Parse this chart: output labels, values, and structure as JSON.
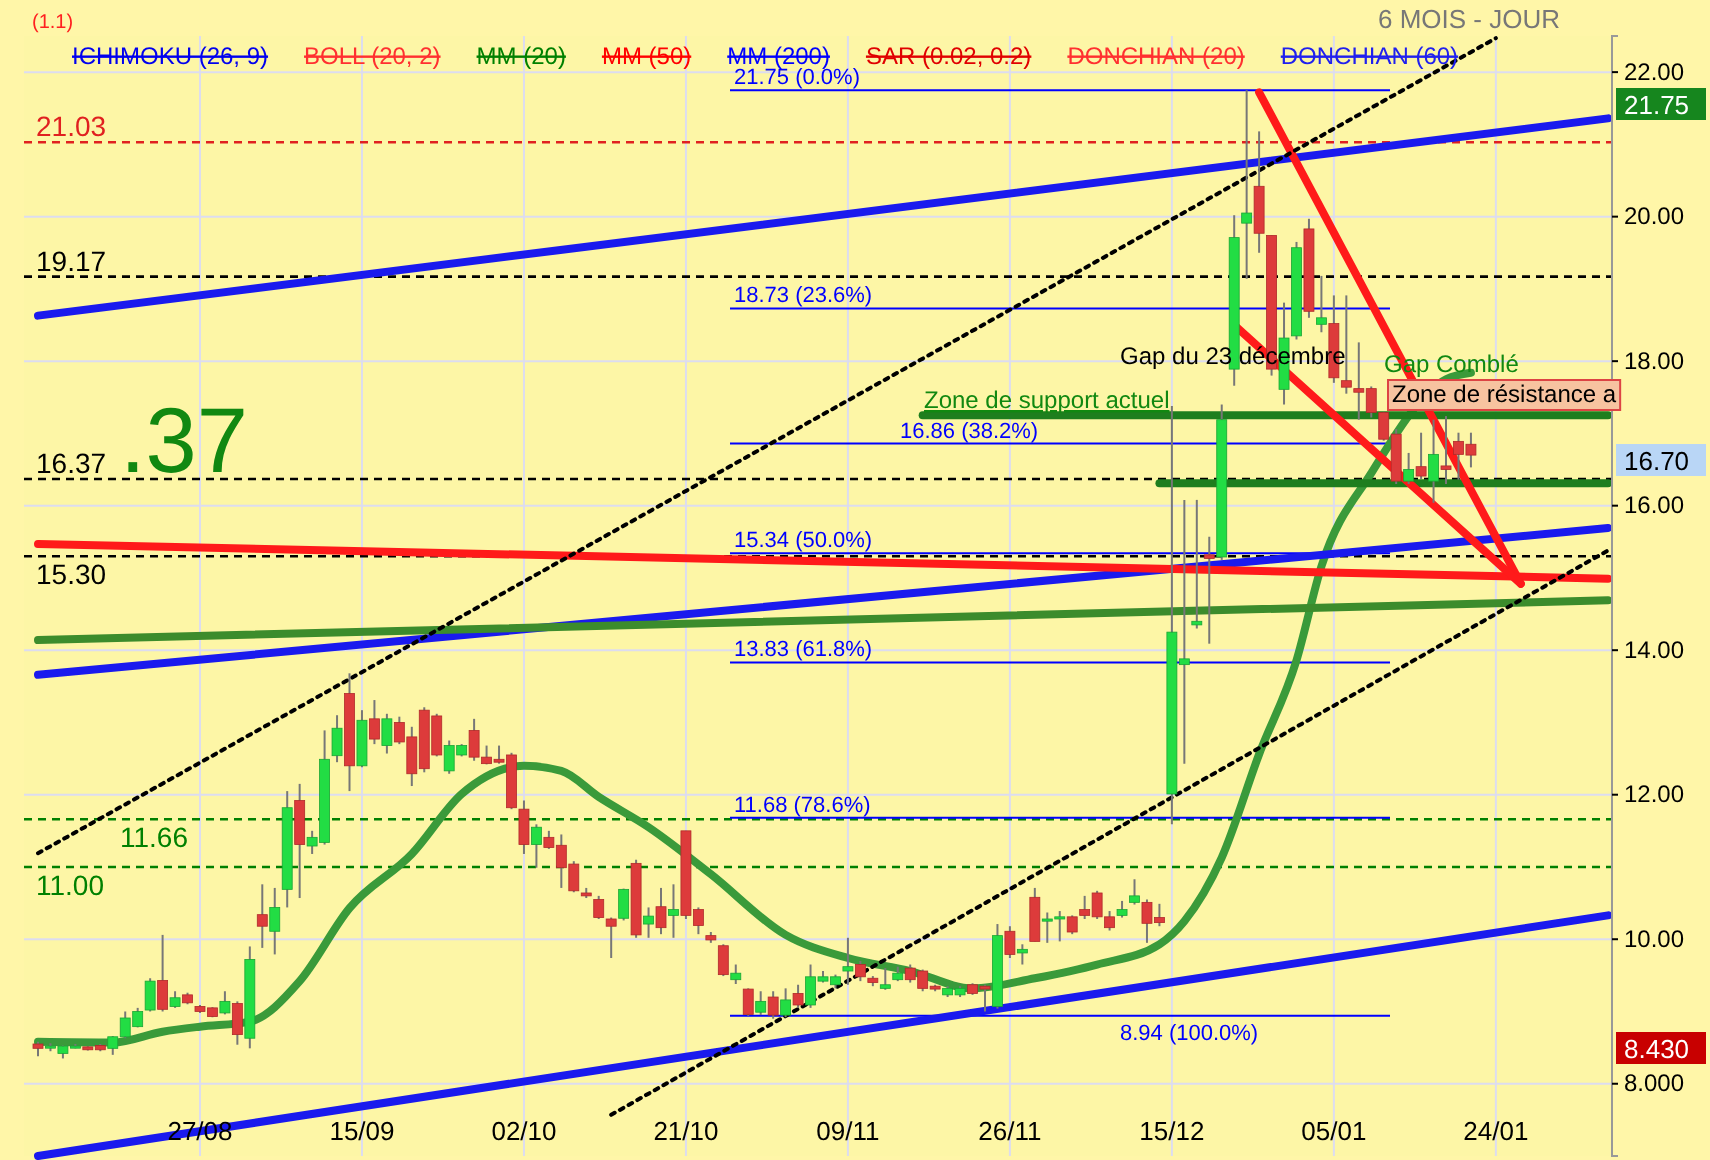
{
  "chart_data": {
    "type": "candlestick",
    "subtitle": "6 MOIS - JOUR",
    "categories": [
      null,
      null,
      null,
      null,
      null,
      null,
      null,
      null,
      null,
      null,
      null,
      null,
      null,
      "27/08",
      null,
      null,
      null,
      null,
      null,
      null,
      null,
      null,
      null,
      null,
      null,
      null,
      "15/09",
      null,
      null,
      null,
      null,
      null,
      null,
      null,
      null,
      null,
      null,
      null,
      null,
      "02/10",
      null,
      null,
      null,
      null,
      null,
      null,
      null,
      null,
      null,
      null,
      null,
      null,
      "21/10",
      null,
      null,
      null,
      null,
      null,
      null,
      null,
      null,
      null,
      null,
      null,
      null,
      "09/11",
      null,
      null,
      null,
      null,
      null,
      null,
      null,
      null,
      null,
      null,
      null,
      null,
      "26/11",
      null,
      null,
      null,
      null,
      null,
      null,
      null,
      null,
      null,
      null,
      null,
      null,
      "15/12",
      null,
      null,
      null,
      null,
      null,
      null,
      null,
      null,
      null,
      null,
      null,
      null,
      "05/01",
      null,
      null,
      null,
      null,
      null,
      null,
      null,
      null,
      null,
      null,
      null,
      null,
      "24/01",
      null,
      null,
      null,
      null,
      null,
      null,
      null,
      null,
      null
    ],
    "ohlc": [
      [
        8.55,
        8.58,
        8.38,
        8.49
      ],
      [
        8.5,
        8.56,
        8.45,
        8.52
      ],
      [
        8.42,
        8.53,
        8.35,
        8.52
      ],
      [
        8.52,
        8.55,
        8.49,
        8.52
      ],
      [
        8.51,
        8.52,
        8.46,
        8.47
      ],
      [
        8.53,
        8.55,
        8.45,
        8.47
      ],
      [
        8.49,
        8.66,
        8.4,
        8.65
      ],
      [
        8.65,
        9.0,
        8.63,
        8.91
      ],
      [
        8.79,
        9.05,
        8.78,
        9.0
      ],
      [
        9.02,
        9.46,
        9.0,
        9.42
      ],
      [
        9.43,
        10.06,
        9.0,
        9.03
      ],
      [
        9.07,
        9.28,
        9.05,
        9.19
      ],
      [
        9.23,
        9.26,
        9.1,
        9.12
      ],
      [
        9.07,
        9.09,
        8.98,
        9.0
      ],
      [
        9.05,
        9.06,
        8.92,
        8.93
      ],
      [
        8.98,
        9.28,
        8.96,
        9.14
      ],
      [
        9.11,
        9.14,
        8.54,
        8.68
      ],
      [
        8.63,
        9.9,
        8.49,
        9.72
      ],
      [
        10.34,
        10.76,
        9.88,
        10.18
      ],
      [
        10.11,
        10.71,
        9.79,
        10.44
      ],
      [
        10.69,
        12.05,
        10.44,
        11.82
      ],
      [
        11.92,
        12.15,
        10.57,
        11.31
      ],
      [
        11.29,
        11.5,
        11.18,
        11.41
      ],
      [
        11.34,
        12.89,
        11.31,
        12.49
      ],
      [
        12.54,
        13.1,
        12.45,
        12.92
      ],
      [
        13.4,
        13.68,
        12.05,
        12.4
      ],
      [
        12.4,
        13.17,
        12.38,
        13.03
      ],
      [
        13.05,
        13.31,
        12.7,
        12.77
      ],
      [
        12.68,
        13.12,
        12.57,
        13.05
      ],
      [
        13.0,
        13.08,
        12.7,
        12.73
      ],
      [
        12.8,
        12.94,
        12.12,
        12.29
      ],
      [
        13.17,
        13.21,
        12.31,
        12.36
      ],
      [
        13.09,
        13.12,
        12.53,
        12.55
      ],
      [
        12.33,
        12.75,
        12.29,
        12.68
      ],
      [
        12.55,
        12.7,
        12.53,
        12.68
      ],
      [
        12.89,
        13.05,
        12.47,
        12.52
      ],
      [
        12.52,
        12.68,
        12.42,
        12.43
      ],
      [
        12.49,
        12.68,
        12.43,
        12.45
      ],
      [
        12.55,
        12.58,
        11.8,
        11.82
      ],
      [
        11.8,
        11.92,
        11.18,
        11.31
      ],
      [
        11.31,
        11.59,
        10.99,
        11.55
      ],
      [
        11.41,
        11.5,
        11.25,
        11.27
      ],
      [
        11.3,
        11.45,
        10.71,
        10.99
      ],
      [
        11.04,
        11.08,
        10.65,
        10.67
      ],
      [
        10.64,
        10.71,
        10.57,
        10.6
      ],
      [
        10.55,
        10.6,
        10.28,
        10.3
      ],
      [
        10.28,
        10.3,
        9.74,
        10.18
      ],
      [
        10.29,
        10.7,
        10.26,
        10.69
      ],
      [
        11.05,
        11.1,
        10.02,
        10.06
      ],
      [
        10.21,
        10.44,
        10.02,
        10.32
      ],
      [
        10.45,
        10.71,
        10.07,
        10.16
      ],
      [
        10.33,
        10.76,
        10.02,
        10.41
      ],
      [
        11.5,
        11.5,
        10.28,
        10.33
      ],
      [
        10.41,
        10.44,
        10.07,
        10.19
      ],
      [
        10.05,
        10.1,
        9.95,
        9.99
      ],
      [
        9.91,
        9.93,
        9.49,
        9.51
      ],
      [
        9.44,
        9.65,
        9.38,
        9.53
      ],
      [
        9.31,
        9.32,
        8.94,
        8.96
      ],
      [
        8.99,
        9.28,
        8.95,
        9.14
      ],
      [
        9.2,
        9.28,
        8.9,
        8.95
      ],
      [
        8.95,
        9.32,
        8.92,
        9.16
      ],
      [
        9.25,
        9.37,
        9.05,
        9.09
      ],
      [
        9.09,
        9.65,
        9.05,
        9.48
      ],
      [
        9.42,
        9.56,
        9.4,
        9.48
      ],
      [
        9.37,
        9.51,
        9.32,
        9.48
      ],
      [
        9.56,
        10.02,
        9.37,
        9.62
      ],
      [
        9.65,
        9.7,
        9.42,
        9.48
      ],
      [
        9.46,
        9.49,
        9.35,
        9.4
      ],
      [
        9.32,
        9.6,
        9.3,
        9.37
      ],
      [
        9.44,
        9.62,
        9.42,
        9.53
      ],
      [
        9.6,
        9.65,
        9.4,
        9.44
      ],
      [
        9.56,
        9.58,
        9.28,
        9.32
      ],
      [
        9.35,
        9.37,
        9.28,
        9.31
      ],
      [
        9.23,
        9.35,
        9.2,
        9.32
      ],
      [
        9.23,
        9.35,
        9.2,
        9.32
      ],
      [
        9.37,
        9.39,
        9.23,
        9.25
      ],
      [
        9.35,
        9.37,
        9.0,
        9.31
      ],
      [
        9.07,
        10.21,
        9.04,
        10.05
      ],
      [
        10.11,
        10.18,
        9.74,
        9.79
      ],
      [
        9.81,
        9.93,
        9.65,
        9.86
      ],
      [
        10.58,
        10.71,
        9.97,
        9.97
      ],
      [
        10.25,
        10.37,
        9.95,
        10.28
      ],
      [
        10.28,
        10.39,
        9.97,
        10.31
      ],
      [
        10.31,
        10.33,
        10.07,
        10.1
      ],
      [
        10.41,
        10.6,
        10.28,
        10.33
      ],
      [
        10.64,
        10.67,
        10.28,
        10.31
      ],
      [
        10.31,
        10.39,
        10.12,
        10.16
      ],
      [
        10.33,
        10.53,
        10.3,
        10.41
      ],
      [
        10.51,
        10.83,
        10.48,
        10.6
      ],
      [
        10.51,
        10.55,
        9.95,
        10.22
      ],
      [
        10.3,
        10.49,
        10.18,
        10.23
      ],
      [
        12.01,
        17.38,
        11.59,
        14.25
      ],
      [
        13.8,
        16.08,
        12.43,
        13.88
      ],
      [
        14.35,
        16.08,
        14.3,
        14.4
      ],
      [
        15.32,
        15.57,
        14.09,
        15.27
      ],
      [
        15.29,
        17.4,
        15.25,
        17.19
      ],
      [
        17.89,
        20.02,
        17.66,
        19.71
      ],
      [
        19.91,
        21.75,
        19.14,
        20.05
      ],
      [
        20.42,
        21.18,
        19.5,
        19.77
      ],
      [
        19.74,
        19.74,
        17.8,
        17.89
      ],
      [
        17.61,
        18.81,
        17.4,
        18.32
      ],
      [
        18.35,
        19.65,
        18.3,
        19.57
      ],
      [
        19.83,
        19.97,
        18.6,
        18.69
      ],
      [
        18.51,
        19.18,
        18.4,
        18.6
      ],
      [
        18.52,
        18.91,
        17.7,
        17.77
      ],
      [
        17.73,
        18.91,
        17.55,
        17.64
      ],
      [
        17.62,
        18.26,
        17.19,
        17.57
      ],
      [
        17.62,
        17.65,
        17.22,
        17.29
      ],
      [
        17.29,
        17.3,
        16.9,
        16.92
      ],
      [
        16.99,
        17.06,
        16.3,
        16.34
      ],
      [
        16.34,
        16.73,
        16.3,
        16.5
      ],
      [
        16.54,
        17.01,
        16.37,
        16.41
      ],
      [
        16.34,
        17.19,
        16.04,
        16.71
      ],
      [
        16.55,
        17.24,
        16.3,
        16.5
      ],
      [
        16.89,
        17.01,
        16.36,
        16.71
      ],
      [
        16.85,
        17.01,
        16.53,
        16.7
      ],
      null,
      null,
      null,
      null,
      null,
      null,
      null,
      null,
      null,
      null,
      null
    ],
    "series": [
      {
        "type": "line",
        "color": "#3a9a3a",
        "values": [
          8.58,
          null,
          null,
          null,
          null,
          null,
          8.57,
          null,
          null,
          null,
          8.72,
          null,
          null,
          8.79,
          null,
          null,
          null,
          8.86,
          null,
          null,
          null,
          9.42,
          null,
          null,
          null,
          10.43,
          null,
          null,
          null,
          null,
          11.18,
          null,
          null,
          null,
          12.01,
          null,
          null,
          null,
          null,
          12.4,
          null,
          null,
          12.33,
          null,
          null,
          11.97,
          null,
          null,
          null,
          11.55,
          null,
          null,
          null,
          null,
          10.9,
          null,
          null,
          null,
          null,
          null,
          10.06,
          null,
          null,
          null,
          null,
          9.74,
          null,
          null,
          null,
          null,
          9.56,
          null,
          null,
          null,
          null,
          9.32,
          null,
          null,
          null,
          null,
          9.46,
          null,
          null,
          null,
          null,
          9.65,
          null,
          null,
          null,
          null,
          9.93,
          null,
          10.25,
          null,
          null,
          11.13,
          null,
          null,
          12.56,
          null,
          null,
          13.86,
          null,
          15.16,
          null,
          null,
          null,
          16.45,
          null,
          null,
          null,
          null,
          null,
          17.75,
          null,
          17.84,
          null,
          null,
          null,
          null,
          null,
          null,
          null,
          null,
          null,
          null,
          null
        ]
      },
      {
        "type": "line",
        "color": "#1a1aee",
        "values": [
          18.63,
          null,
          null,
          null,
          null,
          null,
          null,
          null,
          null,
          null,
          null,
          null,
          null,
          null,
          null,
          null,
          null,
          null,
          null,
          null,
          null,
          null,
          null,
          null,
          null,
          null,
          null,
          null,
          null,
          null,
          null,
          null,
          null,
          null,
          null,
          null,
          null,
          null,
          null,
          null,
          null,
          null,
          null,
          null,
          null,
          null,
          null,
          null,
          null,
          null,
          null,
          null,
          null,
          null,
          null,
          null,
          null,
          null,
          null,
          null,
          null,
          null,
          null,
          null,
          null,
          null,
          null,
          null,
          null,
          null,
          null,
          null,
          null,
          null,
          null,
          null,
          null,
          null,
          null,
          null,
          null,
          null,
          null,
          null,
          null,
          null,
          null,
          null,
          null,
          null,
          null,
          null,
          null,
          null,
          null,
          null,
          null,
          null,
          null,
          null,
          null,
          null,
          null,
          null,
          null,
          null,
          null,
          null,
          null,
          null,
          null,
          null,
          null,
          null,
          null,
          null,
          null,
          null,
          null,
          null,
          null,
          null,
          null,
          null,
          null,
          null,
          21.36
        ]
      },
      {
        "type": "line",
        "color": "#1a1aee",
        "values": [
          13.66,
          null,
          null,
          null,
          null,
          null,
          null,
          null,
          null,
          null,
          null,
          null,
          null,
          null,
          null,
          null,
          null,
          null,
          null,
          null,
          null,
          null,
          null,
          null,
          null,
          null,
          null,
          null,
          null,
          null,
          null,
          null,
          null,
          null,
          null,
          null,
          null,
          null,
          null,
          null,
          null,
          null,
          null,
          null,
          null,
          null,
          null,
          null,
          null,
          null,
          null,
          null,
          null,
          null,
          null,
          null,
          null,
          null,
          null,
          null,
          null,
          null,
          null,
          null,
          null,
          null,
          null,
          null,
          null,
          null,
          null,
          null,
          null,
          null,
          null,
          null,
          null,
          null,
          null,
          null,
          null,
          null,
          null,
          null,
          null,
          null,
          null,
          null,
          null,
          null,
          null,
          null,
          null,
          null,
          null,
          null,
          null,
          null,
          null,
          null,
          null,
          null,
          null,
          null,
          null,
          null,
          null,
          null,
          null,
          null,
          null,
          null,
          null,
          null,
          null,
          null,
          null,
          null,
          null,
          null,
          null,
          null,
          null,
          null,
          null,
          null,
          15.69
        ]
      },
      {
        "type": "line",
        "color": "#1a1aee",
        "values": [
          7.0,
          null,
          null,
          null,
          null,
          null,
          null,
          null,
          null,
          null,
          null,
          null,
          null,
          null,
          null,
          null,
          null,
          null,
          null,
          null,
          null,
          null,
          null,
          null,
          null,
          null,
          null,
          null,
          null,
          null,
          null,
          null,
          null,
          null,
          null,
          null,
          null,
          null,
          null,
          null,
          null,
          null,
          null,
          null,
          null,
          null,
          null,
          null,
          null,
          null,
          null,
          null,
          null,
          null,
          null,
          null,
          null,
          null,
          null,
          null,
          null,
          null,
          null,
          null,
          null,
          null,
          null,
          null,
          null,
          null,
          null,
          null,
          null,
          null,
          null,
          null,
          null,
          null,
          null,
          null,
          null,
          null,
          null,
          null,
          null,
          null,
          null,
          null,
          null,
          null,
          null,
          null,
          null,
          null,
          null,
          null,
          null,
          null,
          null,
          null,
          null,
          null,
          null,
          null,
          null,
          null,
          null,
          null,
          null,
          null,
          null,
          null,
          null,
          null,
          null,
          null,
          null,
          null,
          null,
          null,
          null,
          null,
          null,
          null,
          null,
          null,
          10.33
        ]
      },
      {
        "type": "line",
        "color": "#ff1a1a",
        "values": [
          15.47,
          null,
          null,
          null,
          null,
          null,
          null,
          null,
          null,
          null,
          null,
          null,
          null,
          null,
          null,
          null,
          null,
          null,
          null,
          null,
          null,
          null,
          null,
          null,
          null,
          null,
          null,
          null,
          null,
          null,
          null,
          null,
          null,
          null,
          null,
          null,
          null,
          null,
          null,
          null,
          null,
          null,
          null,
          null,
          null,
          null,
          null,
          null,
          null,
          null,
          null,
          null,
          null,
          null,
          null,
          null,
          null,
          null,
          null,
          null,
          null,
          null,
          null,
          null,
          null,
          null,
          null,
          null,
          null,
          null,
          null,
          null,
          null,
          null,
          null,
          null,
          null,
          null,
          null,
          null,
          null,
          null,
          null,
          null,
          null,
          null,
          null,
          null,
          null,
          null,
          null,
          null,
          null,
          null,
          null,
          null,
          null,
          null,
          null,
          null,
          null,
          null,
          null,
          null,
          null,
          null,
          null,
          null,
          null,
          null,
          null,
          null,
          null,
          null,
          null,
          null,
          null,
          null,
          null,
          null,
          null,
          null,
          null,
          null,
          null,
          null,
          14.99
        ]
      },
      {
        "type": "line",
        "color": "#3c8c2c",
        "values": [
          14.14,
          null,
          null,
          null,
          null,
          null,
          null,
          null,
          null,
          null,
          null,
          null,
          null,
          null,
          null,
          null,
          null,
          null,
          null,
          null,
          null,
          null,
          null,
          null,
          null,
          null,
          null,
          null,
          null,
          null,
          null,
          null,
          null,
          null,
          null,
          null,
          null,
          null,
          null,
          null,
          null,
          null,
          null,
          null,
          null,
          null,
          null,
          null,
          null,
          null,
          null,
          null,
          null,
          null,
          null,
          null,
          null,
          null,
          null,
          null,
          null,
          null,
          null,
          null,
          null,
          null,
          null,
          null,
          null,
          null,
          null,
          null,
          null,
          null,
          null,
          null,
          null,
          null,
          null,
          null,
          null,
          null,
          null,
          null,
          null,
          null,
          null,
          null,
          null,
          null,
          null,
          null,
          null,
          null,
          null,
          null,
          null,
          null,
          null,
          null,
          null,
          null,
          null,
          null,
          null,
          null,
          null,
          null,
          null,
          null,
          null,
          null,
          null,
          null,
          null,
          null,
          null,
          null,
          null,
          null,
          null,
          null,
          null,
          null,
          null,
          null,
          14.69
        ]
      },
      {
        "type": "line",
        "color": "#1e7e1e",
        "values": [
          null,
          null,
          null,
          null,
          null,
          null,
          null,
          null,
          null,
          null,
          null,
          null,
          null,
          null,
          null,
          null,
          null,
          null,
          null,
          null,
          null,
          null,
          null,
          null,
          null,
          null,
          null,
          null,
          null,
          null,
          null,
          null,
          null,
          null,
          null,
          null,
          null,
          null,
          null,
          null,
          null,
          null,
          null,
          null,
          null,
          null,
          null,
          null,
          null,
          null,
          null,
          null,
          null,
          null,
          null,
          null,
          null,
          null,
          null,
          null,
          null,
          null,
          null,
          null,
          null,
          null,
          null,
          null,
          null,
          null,
          null,
          null,
          null,
          null,
          null,
          null,
          null,
          null,
          null,
          null,
          null,
          null,
          null,
          null,
          null,
          null,
          null,
          null,
          null,
          null,
          16.31,
          null,
          null,
          null,
          null,
          null,
          null,
          null,
          null,
          null,
          null,
          null,
          null,
          null,
          null,
          null,
          null,
          null,
          null,
          null,
          null,
          null,
          null,
          null,
          null,
          null,
          null,
          null,
          null,
          null,
          null,
          null,
          null,
          null,
          null,
          null,
          16.31
        ]
      },
      {
        "type": "line",
        "color": "#1e7e1e",
        "values": [
          null,
          null,
          null,
          null,
          null,
          null,
          null,
          null,
          null,
          null,
          null,
          null,
          null,
          null,
          null,
          null,
          null,
          null,
          null,
          null,
          null,
          null,
          null,
          null,
          null,
          null,
          null,
          null,
          null,
          null,
          null,
          null,
          null,
          null,
          null,
          null,
          null,
          null,
          null,
          null,
          null,
          null,
          null,
          null,
          null,
          null,
          null,
          null,
          null,
          null,
          null,
          null,
          null,
          null,
          null,
          null,
          null,
          null,
          null,
          null,
          null,
          null,
          null,
          null,
          null,
          null,
          null,
          null,
          null,
          null,
          null,
          17.25,
          null,
          null,
          null,
          null,
          null,
          null,
          null,
          null,
          null,
          null,
          null,
          null,
          null,
          null,
          null,
          null,
          null,
          null,
          null,
          null,
          null,
          null,
          null,
          null,
          null,
          null,
          null,
          null,
          null,
          null,
          null,
          null,
          null,
          null,
          null,
          null,
          null,
          null,
          null,
          null,
          null,
          null,
          null,
          null,
          null,
          null,
          null,
          null,
          null,
          null,
          null,
          null,
          null,
          null,
          17.25
        ]
      },
      {
        "type": "line",
        "color": "#ff1a1a",
        "values": [
          null,
          null,
          null,
          null,
          null,
          null,
          null,
          null,
          null,
          null,
          null,
          null,
          null,
          null,
          null,
          null,
          null,
          null,
          null,
          null,
          null,
          null,
          null,
          null,
          null,
          null,
          null,
          null,
          null,
          null,
          null,
          null,
          null,
          null,
          null,
          null,
          null,
          null,
          null,
          null,
          null,
          null,
          null,
          null,
          null,
          null,
          null,
          null,
          null,
          null,
          null,
          null,
          null,
          null,
          null,
          null,
          null,
          null,
          null,
          null,
          null,
          null,
          null,
          null,
          null,
          null,
          null,
          null,
          null,
          null,
          null,
          null,
          null,
          null,
          null,
          null,
          null,
          null,
          null,
          null,
          null,
          null,
          null,
          null,
          null,
          null,
          null,
          null,
          null,
          null,
          null,
          null,
          null,
          null,
          null,
          null,
          null,
          null,
          21.72,
          null,
          null,
          null,
          null,
          null,
          null,
          null,
          null,
          null,
          null,
          null,
          null,
          null,
          null,
          null,
          null,
          null,
          null,
          null,
          null,
          14.92,
          null,
          null,
          null,
          null,
          null,
          null,
          null
        ]
      },
      {
        "type": "line",
        "color": "#ff1a1a",
        "values": [
          null,
          null,
          null,
          null,
          null,
          null,
          null,
          null,
          null,
          null,
          null,
          null,
          null,
          null,
          null,
          null,
          null,
          null,
          null,
          null,
          null,
          null,
          null,
          null,
          null,
          null,
          null,
          null,
          null,
          null,
          null,
          null,
          null,
          null,
          null,
          null,
          null,
          null,
          null,
          null,
          null,
          null,
          null,
          null,
          null,
          null,
          null,
          null,
          null,
          null,
          null,
          null,
          null,
          null,
          null,
          null,
          null,
          null,
          null,
          null,
          null,
          null,
          null,
          null,
          null,
          null,
          null,
          null,
          null,
          null,
          null,
          null,
          null,
          null,
          null,
          null,
          null,
          null,
          null,
          null,
          null,
          null,
          null,
          null,
          null,
          null,
          null,
          null,
          null,
          null,
          null,
          null,
          null,
          null,
          null,
          null,
          18.5,
          null,
          null,
          null,
          null,
          null,
          null,
          null,
          null,
          null,
          null,
          null,
          null,
          null,
          null,
          null,
          null,
          null,
          null,
          null,
          null,
          null,
          null,
          14.92,
          null,
          null,
          null,
          null,
          null,
          null,
          null
        ]
      },
      {
        "type": "line",
        "color": "#000000",
        "line_style": "dotted",
        "values": [
          11.19,
          null,
          null,
          null,
          null,
          null,
          null,
          null,
          null,
          null,
          null,
          null,
          null,
          null,
          null,
          null,
          null,
          null,
          null,
          null,
          null,
          null,
          null,
          null,
          null,
          null,
          null,
          null,
          null,
          null,
          null,
          null,
          null,
          null,
          null,
          null,
          null,
          null,
          null,
          null,
          null,
          null,
          null,
          null,
          null,
          null,
          null,
          null,
          null,
          null,
          null,
          null,
          null,
          null,
          null,
          null,
          null,
          null,
          null,
          null,
          null,
          null,
          null,
          null,
          null,
          null,
          null,
          null,
          null,
          null,
          null,
          null,
          null,
          null,
          null,
          null,
          null,
          null,
          null,
          null,
          null,
          null,
          null,
          null,
          null,
          null,
          null,
          null,
          null,
          null,
          null,
          null,
          null,
          null,
          null,
          null,
          null,
          null,
          null,
          null,
          null,
          null,
          null,
          null,
          null,
          null,
          null,
          null,
          null,
          null,
          null,
          null,
          null,
          null,
          null,
          null,
          null,
          22.47,
          null,
          null,
          null,
          null,
          null,
          null,
          null,
          null,
          null
        ]
      },
      {
        "type": "line",
        "color": "#000000",
        "line_style": "dotted",
        "values": [
          null,
          null,
          null,
          null,
          null,
          null,
          null,
          null,
          null,
          null,
          null,
          null,
          null,
          null,
          null,
          null,
          null,
          null,
          null,
          null,
          null,
          null,
          null,
          null,
          null,
          null,
          null,
          null,
          null,
          null,
          null,
          null,
          null,
          null,
          null,
          null,
          null,
          null,
          null,
          null,
          null,
          null,
          null,
          null,
          null,
          null,
          7.57,
          null,
          null,
          null,
          null,
          null,
          null,
          null,
          null,
          null,
          null,
          null,
          null,
          null,
          null,
          null,
          null,
          null,
          null,
          null,
          null,
          null,
          null,
          null,
          null,
          null,
          null,
          null,
          null,
          null,
          null,
          null,
          null,
          null,
          null,
          null,
          null,
          null,
          null,
          null,
          null,
          null,
          null,
          null,
          null,
          null,
          null,
          null,
          null,
          null,
          null,
          null,
          null,
          null,
          null,
          null,
          null,
          null,
          null,
          null,
          null,
          null,
          null,
          null,
          null,
          null,
          null,
          null,
          null,
          null,
          null,
          null,
          null,
          null,
          null,
          null,
          null,
          null,
          null,
          null,
          15.38
        ]
      }
    ],
    "ylim": [
      7.0,
      22.5
    ],
    "yticks": [
      {
        "value": 8,
        "label": "8.000"
      },
      {
        "value": 10,
        "label": "10.00"
      },
      {
        "value": 12,
        "label": "12.00"
      },
      {
        "value": 14,
        "label": "14.00"
      },
      {
        "value": 16,
        "label": "16.00"
      },
      {
        "value": 18,
        "label": "18.00"
      },
      {
        "value": 20,
        "label": "20.00"
      },
      {
        "value": 22,
        "label": "22.00"
      }
    ],
    "grid": true,
    "ref_lines": [
      {
        "axis": "y",
        "value": 21.03,
        "label": "21.03",
        "color": "#e02020",
        "line_style": "dashed"
      },
      {
        "axis": "y",
        "value": 19.17,
        "label": "19.17",
        "color": "#000000",
        "line_style": "dashed"
      },
      {
        "axis": "y",
        "value": 16.37,
        "label": "16.37",
        "color": "#000000",
        "line_style": "dashed"
      },
      {
        "axis": "y",
        "value": 15.3,
        "label": "15.30",
        "color": "#000000",
        "line_style": "dashed"
      },
      {
        "axis": "y",
        "value": 11.66,
        "label": "11.66",
        "color": "#008000",
        "line_style": "dashed"
      },
      {
        "axis": "y",
        "value": 11.0,
        "label": "11.00",
        "color": "#008000",
        "line_style": "dashed"
      },
      {
        "axis": "y",
        "value": 21.75,
        "label": "21.75  (0.0%)",
        "color": "#0000ff",
        "line_style": "solid"
      },
      {
        "axis": "y",
        "value": 18.73,
        "label": "18.73  (23.6%)",
        "color": "#0000ff",
        "line_style": "solid"
      },
      {
        "axis": "y",
        "value": 16.86,
        "label": "16.86  (38.2%)",
        "color": "#0000ff",
        "line_style": "solid"
      },
      {
        "axis": "y",
        "value": 15.34,
        "label": "15.34  (50.0%)",
        "color": "#0000ff",
        "line_style": "solid"
      },
      {
        "axis": "y",
        "value": 13.83,
        "label": "13.83  (61.8%)",
        "color": "#0000ff",
        "line_style": "solid"
      },
      {
        "axis": "y",
        "value": 11.68,
        "label": "11.68  (78.6%)",
        "color": "#0000ff",
        "line_style": "solid"
      },
      {
        "axis": "y",
        "value": 8.94,
        "label": "8.94  (100.0%)",
        "color": "#0000ff",
        "line_style": "solid"
      }
    ],
    "annotations": [
      "(1.1)",
      "ICHIMOKU (26, 9)",
      "BOLL (20, 2)",
      "MM (20)",
      "MM (50)",
      "MM (200)",
      "SAR (0.02, 0.2)",
      "DONCHIAN (20)",
      "DONCHIAN (60)",
      "Gap du 23 décembre",
      "Gap Comblé",
      "Zone de support actuel",
      "Zone de résistance a",
      "21.75",
      "16.70",
      "8.430",
      ".37"
    ]
  }
}
